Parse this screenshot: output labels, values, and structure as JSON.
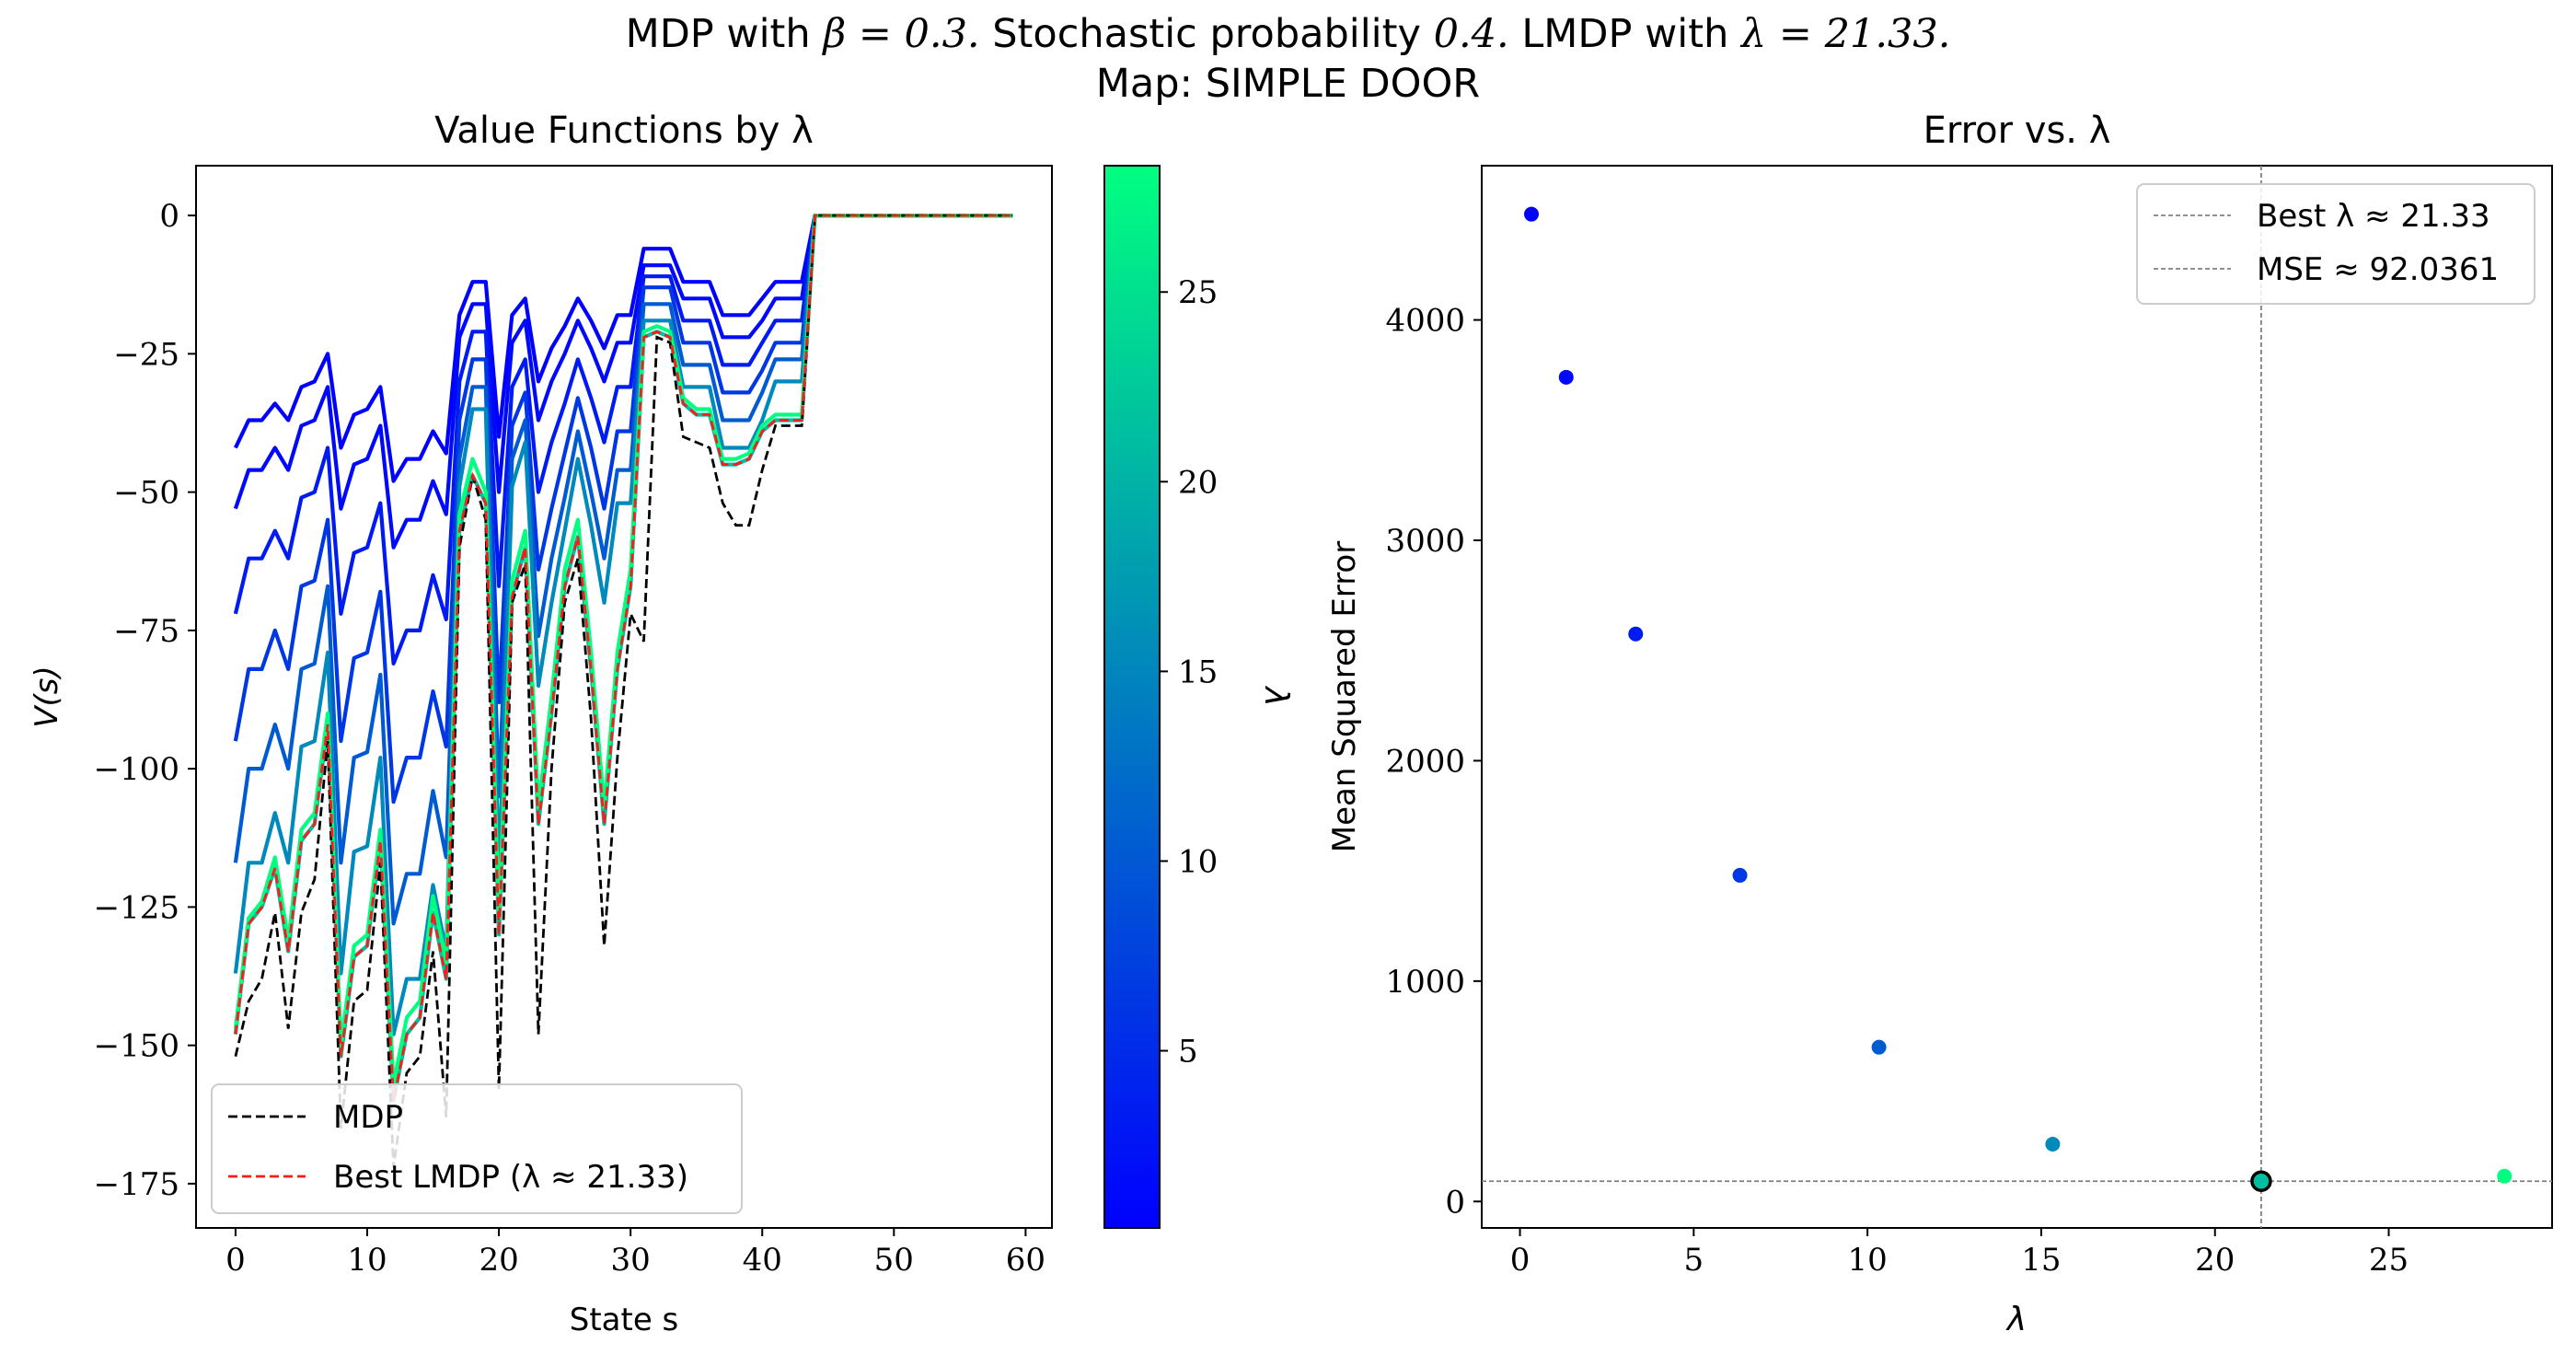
{
  "suptitle": {
    "line1_a": "MDP with ",
    "line1_m1": "β = 0.3.",
    "line1_b": " Stochastic probability ",
    "line1_m2": "0.4.",
    "line1_c": " LMDP with ",
    "line1_m3": "λ = 21.33.",
    "line2": "Map: SIMPLE DOOR"
  },
  "colors": {
    "mdp": "#000000",
    "best_lmdp": "#ff1a1a",
    "cmap_low": "#0000ff",
    "cmap_high": "#00ff80",
    "ref_line": "#808080"
  },
  "chart_data": [
    {
      "type": "line",
      "title": "Value Functions by λ",
      "xlabel": "State s",
      "ylabel": "V(s)",
      "xlim": [
        -3,
        62
      ],
      "ylim": [
        -183,
        9
      ],
      "xticks": [
        0,
        10,
        20,
        30,
        40,
        50,
        60
      ],
      "yticks": [
        0,
        -25,
        -50,
        -75,
        -100,
        -125,
        -150,
        -175
      ],
      "xtick_labels": [
        "0",
        "10",
        "20",
        "30",
        "40",
        "50",
        "60"
      ],
      "ytick_labels": [
        "0",
        "−25",
        "−50",
        "−75",
        "−100",
        "−125",
        "−150",
        "−175"
      ],
      "legend": {
        "placement": "lower-left",
        "entries": [
          "MDP",
          "Best LMDP (λ ≈ 21.33)"
        ]
      },
      "colorbar": {
        "label": "λ",
        "range": [
          0.33,
          28.33
        ],
        "ticks": [
          5,
          10,
          15,
          20,
          25
        ],
        "tick_labels": [
          "5",
          "10",
          "15",
          "20",
          "25"
        ]
      },
      "grid": false,
      "lambda_curves": [
        {
          "lambda": 0.33,
          "values": [
            -42,
            -37,
            -37,
            -34,
            -37,
            -31,
            -30,
            -25,
            -42,
            -36,
            -35,
            -31,
            -48,
            -44,
            -44,
            -39,
            -43,
            -18,
            -12,
            -12,
            -40,
            -18,
            -15,
            -30,
            -24,
            -20,
            -15,
            -19,
            -24,
            -18,
            -18,
            -6,
            -6,
            -6,
            -12,
            -12,
            -12,
            -18,
            -18,
            -18,
            -15,
            -12,
            -12,
            -12,
            0,
            0,
            0,
            0,
            0,
            0,
            0,
            0,
            0,
            0,
            0,
            0,
            0,
            0,
            0,
            0
          ]
        },
        {
          "lambda": 1.33,
          "values": [
            -53,
            -46,
            -46,
            -42,
            -46,
            -38,
            -37,
            -31,
            -53,
            -45,
            -44,
            -38,
            -60,
            -55,
            -55,
            -48,
            -54,
            -22,
            -16,
            -16,
            -50,
            -23,
            -19,
            -37,
            -30,
            -25,
            -19,
            -24,
            -30,
            -23,
            -23,
            -9,
            -9,
            -9,
            -15,
            -15,
            -15,
            -22,
            -22,
            -22,
            -19,
            -15,
            -15,
            -15,
            0,
            0,
            0,
            0,
            0,
            0,
            0,
            0,
            0,
            0,
            0,
            0,
            0,
            0,
            0,
            0
          ]
        },
        {
          "lambda": 3.33,
          "values": [
            -72,
            -62,
            -62,
            -57,
            -62,
            -51,
            -50,
            -42,
            -72,
            -61,
            -60,
            -52,
            -81,
            -75,
            -75,
            -65,
            -73,
            -30,
            -21,
            -21,
            -67,
            -31,
            -26,
            -50,
            -41,
            -34,
            -26,
            -33,
            -41,
            -31,
            -31,
            -11,
            -11,
            -11,
            -19,
            -19,
            -19,
            -27,
            -27,
            -27,
            -23,
            -19,
            -19,
            -19,
            0,
            0,
            0,
            0,
            0,
            0,
            0,
            0,
            0,
            0,
            0,
            0,
            0,
            0,
            0,
            0
          ]
        },
        {
          "lambda": 6.33,
          "values": [
            -95,
            -82,
            -82,
            -75,
            -82,
            -67,
            -66,
            -55,
            -95,
            -80,
            -79,
            -68,
            -106,
            -98,
            -98,
            -86,
            -96,
            -37,
            -26,
            -26,
            -88,
            -38,
            -32,
            -64,
            -53,
            -43,
            -33,
            -42,
            -53,
            -39,
            -39,
            -13,
            -13,
            -13,
            -23,
            -23,
            -23,
            -32,
            -32,
            -32,
            -28,
            -23,
            -23,
            -23,
            0,
            0,
            0,
            0,
            0,
            0,
            0,
            0,
            0,
            0,
            0,
            0,
            0,
            0,
            0,
            0
          ]
        },
        {
          "lambda": 10.33,
          "values": [
            -117,
            -100,
            -100,
            -92,
            -100,
            -82,
            -81,
            -67,
            -117,
            -98,
            -97,
            -83,
            -128,
            -119,
            -119,
            -104,
            -116,
            -44,
            -31,
            -31,
            -105,
            -44,
            -37,
            -76,
            -62,
            -51,
            -39,
            -50,
            -62,
            -46,
            -46,
            -16,
            -16,
            -16,
            -27,
            -27,
            -27,
            -37,
            -37,
            -37,
            -32,
            -26,
            -26,
            -26,
            0,
            0,
            0,
            0,
            0,
            0,
            0,
            0,
            0,
            0,
            0,
            0,
            0,
            0,
            0,
            0
          ]
        },
        {
          "lambda": 15.33,
          "values": [
            -137,
            -117,
            -117,
            -108,
            -117,
            -96,
            -95,
            -79,
            -137,
            -115,
            -114,
            -98,
            -148,
            -138,
            -138,
            -121,
            -133,
            -49,
            -35,
            -35,
            -119,
            -49,
            -41,
            -85,
            -70,
            -57,
            -44,
            -56,
            -70,
            -52,
            -52,
            -19,
            -19,
            -19,
            -31,
            -31,
            -31,
            -42,
            -42,
            -42,
            -37,
            -30,
            -30,
            -30,
            0,
            0,
            0,
            0,
            0,
            0,
            0,
            0,
            0,
            0,
            0,
            0,
            0,
            0,
            0,
            0
          ]
        },
        {
          "lambda": 21.33,
          "values": [
            -148,
            -128,
            -125,
            -118,
            -133,
            -113,
            -110,
            -92,
            -152,
            -134,
            -132,
            -113,
            -160,
            -148,
            -145,
            -126,
            -138,
            -57,
            -47,
            -52,
            -130,
            -69,
            -60,
            -110,
            -90,
            -67,
            -58,
            -82,
            -110,
            -82,
            -67,
            -22,
            -21,
            -22,
            -34,
            -36,
            -36,
            -45,
            -45,
            -44,
            -39,
            -37,
            -37,
            -37,
            0,
            0,
            0,
            0,
            0,
            0,
            0,
            0,
            0,
            0,
            0,
            0,
            0,
            0,
            0,
            0
          ]
        },
        {
          "lambda": 28.33,
          "values": [
            -147,
            -127,
            -124,
            -116,
            -131,
            -111,
            -108,
            -90,
            -150,
            -132,
            -130,
            -111,
            -157,
            -145,
            -142,
            -123,
            -135,
            -54,
            -44,
            -50,
            -127,
            -66,
            -57,
            -107,
            -87,
            -64,
            -55,
            -79,
            -107,
            -79,
            -64,
            -21,
            -20,
            -21,
            -33,
            -35,
            -35,
            -44,
            -44,
            -43,
            -38,
            -36,
            -36,
            -36,
            0,
            0,
            0,
            0,
            0,
            0,
            0,
            0,
            0,
            0,
            0,
            0,
            0,
            0,
            0,
            0
          ]
        }
      ],
      "mdp": [
        -152,
        -142,
        -138,
        -126,
        -147,
        -126,
        -120,
        -95,
        -165,
        -142,
        -140,
        -117,
        -172,
        -155,
        -152,
        -133,
        -163,
        -60,
        -47,
        -55,
        -158,
        -70,
        -63,
        -148,
        -100,
        -70,
        -62,
        -91,
        -132,
        -98,
        -72,
        -77,
        -22,
        -23,
        -40,
        -41,
        -42,
        -52,
        -56,
        -56,
        -46,
        -38,
        -38,
        -38,
        0,
        0,
        0,
        0,
        0,
        0,
        0,
        0,
        0,
        0,
        0,
        0,
        0,
        0,
        0,
        0
      ],
      "best_lmdp": [
        -148,
        -128,
        -125,
        -118,
        -133,
        -113,
        -110,
        -92,
        -152,
        -134,
        -132,
        -113,
        -160,
        -148,
        -145,
        -126,
        -138,
        -57,
        -47,
        -52,
        -130,
        -69,
        -60,
        -110,
        -90,
        -67,
        -58,
        -82,
        -110,
        -82,
        -67,
        -22,
        -21,
        -22,
        -34,
        -36,
        -36,
        -45,
        -45,
        -44,
        -39,
        -37,
        -37,
        -37,
        0,
        0,
        0,
        0,
        0,
        0,
        0,
        0,
        0,
        0,
        0,
        0,
        0,
        0,
        0,
        0
      ]
    },
    {
      "type": "scatter",
      "title": "Error vs. λ",
      "xlabel": "λ",
      "ylabel": "Mean Squared Error",
      "xlim": [
        -1.1,
        29.7
      ],
      "ylim": [
        -120,
        4700
      ],
      "xticks": [
        0,
        5,
        10,
        15,
        20,
        25
      ],
      "yticks": [
        0,
        1000,
        2000,
        3000,
        4000
      ],
      "xtick_labels": [
        "0",
        "5",
        "10",
        "15",
        "20",
        "25"
      ],
      "ytick_labels": [
        "0",
        "1000",
        "2000",
        "3000",
        "4000"
      ],
      "legend": {
        "placement": "top-right",
        "entries": [
          "Best λ ≈ 21.33",
          "MSE ≈ 92.0361"
        ]
      },
      "grid": false,
      "points": [
        {
          "x": 0.33,
          "y": 4480
        },
        {
          "x": 1.33,
          "y": 3740
        },
        {
          "x": 3.33,
          "y": 2575
        },
        {
          "x": 6.33,
          "y": 1480
        },
        {
          "x": 10.33,
          "y": 700
        },
        {
          "x": 15.33,
          "y": 260
        },
        {
          "x": 21.33,
          "y": 92.0361
        },
        {
          "x": 28.33,
          "y": 115
        }
      ],
      "best": {
        "x": 21.33,
        "y": 92.0361
      }
    }
  ]
}
